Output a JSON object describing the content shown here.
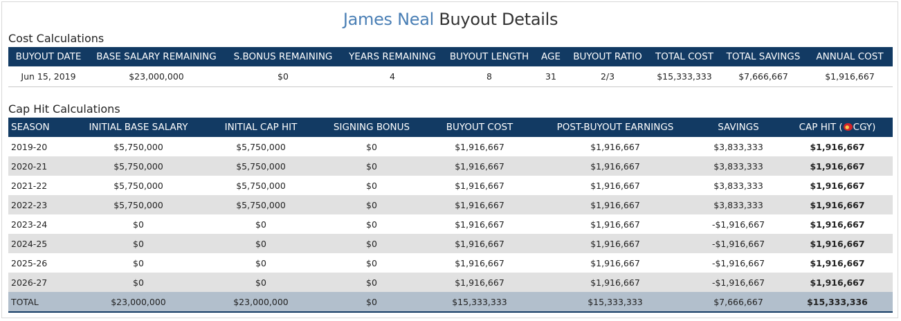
{
  "header": {
    "player_name": "James Neal",
    "title_suffix": "Buyout Details"
  },
  "cost": {
    "section_title": "Cost Calculations",
    "columns": [
      "BUYOUT DATE",
      "BASE SALARY REMAINING",
      "S.BONUS REMAINING",
      "YEARS REMAINING",
      "BUYOUT LENGTH",
      "AGE",
      "BUYOUT RATIO",
      "TOTAL COST",
      "TOTAL SAVINGS",
      "ANNUAL COST"
    ],
    "row": [
      "Jun 15, 2019",
      "$23,000,000",
      "$0",
      "4",
      "8",
      "31",
      "2/3",
      "$15,333,333",
      "$7,666,667",
      "$1,916,667"
    ]
  },
  "cap": {
    "section_title": "Cap Hit Calculations",
    "columns": [
      "SEASON",
      "INITIAL BASE SALARY",
      "INITIAL CAP HIT",
      "SIGNING BONUS",
      "BUYOUT COST",
      "POST-BUYOUT EARNINGS",
      "SAVINGS"
    ],
    "cap_hit_label_prefix": "CAP HIT (",
    "cap_hit_team": "CGY)",
    "team_logo_icon": "calgary-flames-icon",
    "rows": [
      [
        "2019-20",
        "$5,750,000",
        "$5,750,000",
        "$0",
        "$1,916,667",
        "$1,916,667",
        "$3,833,333",
        "$1,916,667"
      ],
      [
        "2020-21",
        "$5,750,000",
        "$5,750,000",
        "$0",
        "$1,916,667",
        "$1,916,667",
        "$3,833,333",
        "$1,916,667"
      ],
      [
        "2021-22",
        "$5,750,000",
        "$5,750,000",
        "$0",
        "$1,916,667",
        "$1,916,667",
        "$3,833,333",
        "$1,916,667"
      ],
      [
        "2022-23",
        "$5,750,000",
        "$5,750,000",
        "$0",
        "$1,916,667",
        "$1,916,667",
        "$3,833,333",
        "$1,916,667"
      ],
      [
        "2023-24",
        "$0",
        "$0",
        "$0",
        "$1,916,667",
        "$1,916,667",
        "-$1,916,667",
        "$1,916,667"
      ],
      [
        "2024-25",
        "$0",
        "$0",
        "$0",
        "$1,916,667",
        "$1,916,667",
        "-$1,916,667",
        "$1,916,667"
      ],
      [
        "2025-26",
        "$0",
        "$0",
        "$0",
        "$1,916,667",
        "$1,916,667",
        "-$1,916,667",
        "$1,916,667"
      ],
      [
        "2026-27",
        "$0",
        "$0",
        "$0",
        "$1,916,667",
        "$1,916,667",
        "-$1,916,667",
        "$1,916,667"
      ]
    ],
    "total": [
      "TOTAL",
      "$23,000,000",
      "$23,000,000",
      "$0",
      "$15,333,333",
      "$15,333,333",
      "$7,666,667",
      "$15,333,336"
    ]
  },
  "colors": {
    "header_bg": "#123a63",
    "player_name": "#4a7fb5",
    "stripe": "#e1e1e1",
    "total_bg": "#b2bfcc"
  }
}
